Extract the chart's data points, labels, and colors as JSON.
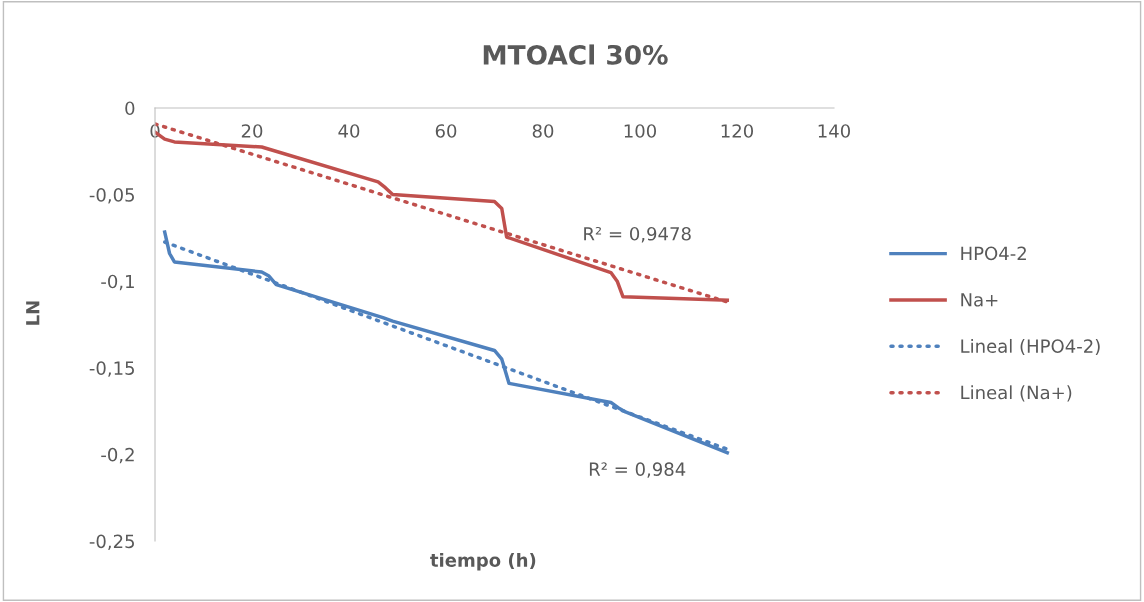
{
  "chart_data": {
    "type": "line",
    "title": "MTOACl 30%",
    "xlabel": "tiempo (h)",
    "ylabel": "LN",
    "xlim": [
      0,
      140
    ],
    "ylim": [
      -0.25,
      0
    ],
    "xticks": [
      0,
      20,
      40,
      60,
      80,
      100,
      120,
      140
    ],
    "yticks": [
      {
        "value": 0,
        "label": "0"
      },
      {
        "value": -0.05,
        "label": "-0,05"
      },
      {
        "value": -0.1,
        "label": "-0,1"
      },
      {
        "value": -0.15,
        "label": "-0,15"
      },
      {
        "value": -0.2,
        "label": "-0,2"
      },
      {
        "value": -0.25,
        "label": "-0,25"
      }
    ],
    "grid": false,
    "legend": "right",
    "marker": "none",
    "series": [
      {
        "name": "HPO4-2",
        "color": "#4f81bd",
        "line_style": "solid",
        "x": [
          2,
          3,
          4,
          22,
          23.5,
          25,
          47,
          49,
          70,
          71.5,
          73,
          94,
          95.5,
          97,
          118
        ],
        "values": [
          -0.0716,
          -0.084,
          -0.0889,
          -0.0947,
          -0.097,
          -0.102,
          -0.121,
          -0.123,
          -0.14,
          -0.145,
          -0.159,
          -0.17,
          -0.173,
          -0.1755,
          -0.199
        ]
      },
      {
        "name": "Na+",
        "color": "#c0504d",
        "line_style": "solid",
        "x": [
          0,
          2,
          4,
          22,
          46,
          47.5,
          49,
          70,
          71.5,
          72.5,
          94,
          95.3,
          96.5,
          118
        ],
        "values": [
          -0.014,
          -0.018,
          -0.0196,
          -0.0225,
          -0.0427,
          -0.046,
          -0.05,
          -0.054,
          -0.058,
          -0.0745,
          -0.095,
          -0.1,
          -0.109,
          -0.111
        ]
      },
      {
        "name": "Lineal (HPO4-2)",
        "color": "#4f81bd",
        "line_style": "dotted",
        "x": [
          2,
          118
        ],
        "values": [
          -0.0774,
          -0.197
        ]
      },
      {
        "name": "Lineal (Na+)",
        "color": "#c0504d",
        "line_style": "dotted",
        "x": [
          0,
          118
        ],
        "values": [
          -0.0092,
          -0.112
        ]
      }
    ],
    "annotations": [
      "R² = 0,9478",
      "R² = 0,984"
    ]
  }
}
